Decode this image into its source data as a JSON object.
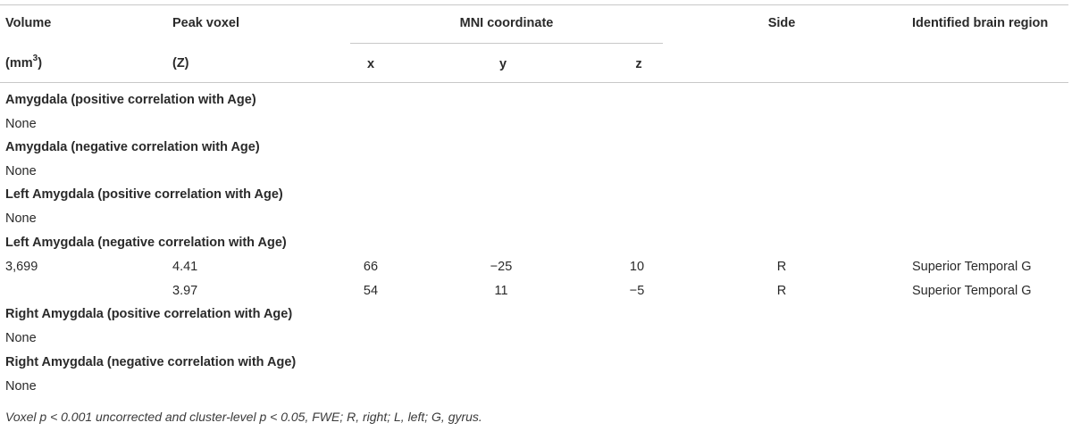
{
  "header": {
    "volume": "Volume",
    "volume_unit_pre": "(mm",
    "volume_unit_sup": "3",
    "volume_unit_post": ")",
    "peak_voxel": "Peak voxel",
    "peak_voxel_unit": "(Z)",
    "mni": "MNI coordinate",
    "x": "x",
    "y": "y",
    "z": "z",
    "side": "Side",
    "region": "Identified brain region"
  },
  "sections": [
    {
      "title": "Amygdala (positive correlation with Age)",
      "none": "None"
    },
    {
      "title": "Amygdala (negative correlation with Age)",
      "none": "None"
    },
    {
      "title": "Left Amygdala (positive correlation with Age)",
      "none": "None"
    },
    {
      "title": "Left Amygdala (negative correlation with Age)"
    },
    {
      "title": "Right Amygdala (positive correlation with Age)",
      "none": "None"
    },
    {
      "title": "Right Amygdala (negative correlation with Age)",
      "none": "None"
    }
  ],
  "rows": [
    {
      "volume": "3,699",
      "z_score": "4.41",
      "x": "66",
      "y": "−25",
      "z": "10",
      "side": "R",
      "region": "Superior Temporal G"
    },
    {
      "volume": "",
      "z_score": "3.97",
      "x": "54",
      "y": "11",
      "z": "−5",
      "side": "R",
      "region": "Superior Temporal G"
    }
  ],
  "footnote": "Voxel p < 0.001 uncorrected and cluster-level p < 0.05, FWE; R, right; L, left; G, gyrus."
}
